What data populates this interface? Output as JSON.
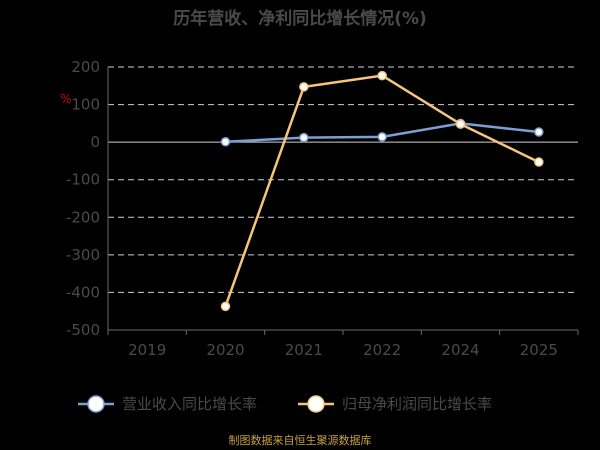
{
  "chart_data": {
    "type": "line",
    "title": "历年营收、净利同比增长情况(%)",
    "unit_label": "%",
    "categories": [
      "2019",
      "2020",
      "2021",
      "2022",
      "2024",
      "2025"
    ],
    "ylim": [
      -500,
      200
    ],
    "yticks": [
      200,
      100,
      0,
      -100,
      -200,
      -300,
      -400,
      -500
    ],
    "grid": true,
    "legend_position": "bottom",
    "series": [
      {
        "name": "营业收入同比增长率",
        "color": "#7b9fd6",
        "values": [
          null,
          1,
          12,
          14,
          50,
          27
        ]
      },
      {
        "name": "归母净利润同比增长率",
        "color": "#f5c57a",
        "values": [
          null,
          -437,
          147,
          177,
          48,
          -53
        ]
      }
    ],
    "source": "制图数据来自恒生聚源数据库"
  }
}
